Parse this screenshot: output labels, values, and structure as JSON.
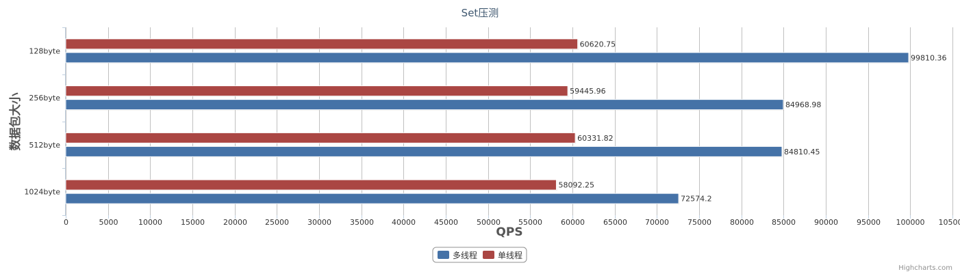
{
  "chart_data": {
    "type": "bar",
    "orientation": "horizontal",
    "title": "Set压测",
    "categories": [
      "128byte",
      "256byte",
      "512byte",
      "1024byte"
    ],
    "series": [
      {
        "name": "多线程",
        "color": "#4572a7",
        "values": [
          99810.36,
          84968.98,
          84810.45,
          72574.2
        ]
      },
      {
        "name": "单线程",
        "color": "#aa4643",
        "values": [
          60620.75,
          59445.96,
          60331.82,
          58092.25
        ]
      }
    ],
    "xlabel": "QPS",
    "ylabel": "数据包大小",
    "xlim": [
      0,
      105000
    ],
    "tick_interval": 5000,
    "grid": true,
    "legend": "bottom-center",
    "data_labels": true
  },
  "credits": "Highcharts.com"
}
